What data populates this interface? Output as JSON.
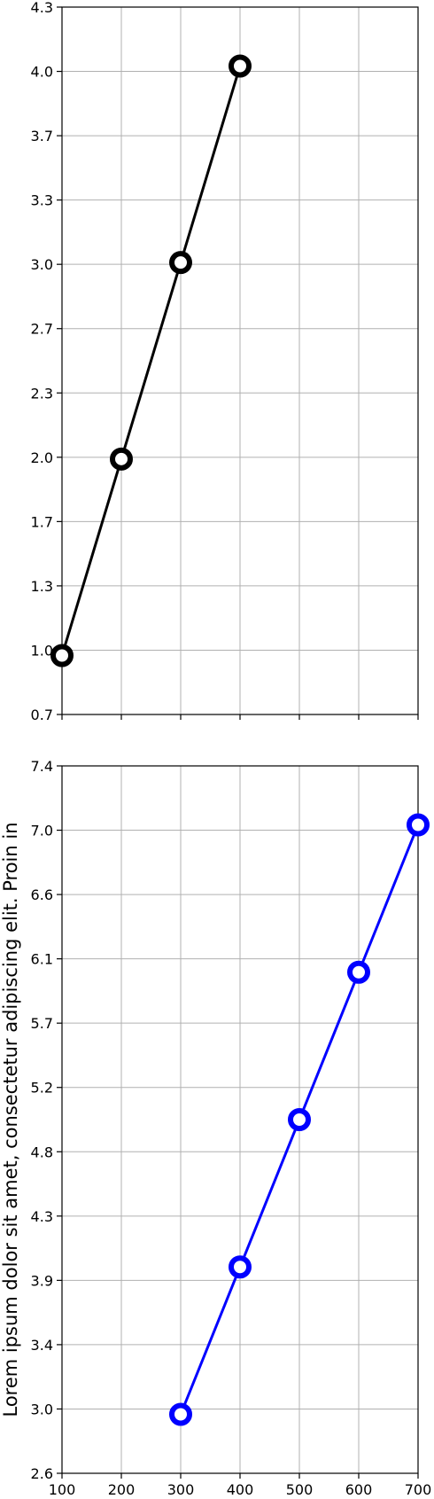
{
  "chart_data": [
    {
      "type": "line",
      "title": "",
      "xlabel": "",
      "ylabel": "",
      "xlim": [
        100,
        700
      ],
      "ylim": [
        0.7,
        4.3
      ],
      "x_ticks": [
        "100",
        "200",
        "300",
        "400",
        "500",
        "600",
        "700"
      ],
      "y_ticks": [
        "0.7",
        "1.0",
        "1.3",
        "1.7",
        "2.0",
        "2.3",
        "2.7",
        "3.0",
        "3.3",
        "3.7",
        "4.0",
        "4.3"
      ],
      "x_tick_labels_shown": false,
      "grid": true,
      "series": [
        {
          "color": "#000000",
          "marker": "open-circle",
          "x": [
            100,
            200,
            300,
            400
          ],
          "y": [
            1.0,
            2.0,
            3.0,
            4.0
          ]
        }
      ]
    },
    {
      "type": "line",
      "title": "",
      "xlabel": "",
      "ylabel": "Lorem ipsum dolor sit amet, consectetur adipiscing elit. Proin in",
      "xlim": [
        100,
        700
      ],
      "ylim": [
        2.6,
        7.4
      ],
      "x_ticks": [
        "100",
        "200",
        "300",
        "400",
        "500",
        "600",
        "700"
      ],
      "y_ticks": [
        "2.6",
        "3.0",
        "3.4",
        "3.9",
        "4.3",
        "4.8",
        "5.2",
        "5.7",
        "6.1",
        "6.6",
        "7.0",
        "7.4"
      ],
      "x_tick_labels_shown": true,
      "grid": true,
      "series": [
        {
          "color": "#0000ff",
          "marker": "open-circle",
          "x": [
            300,
            400,
            500,
            600,
            700
          ],
          "y": [
            3.0,
            4.0,
            5.0,
            6.0,
            7.0
          ]
        }
      ]
    }
  ]
}
